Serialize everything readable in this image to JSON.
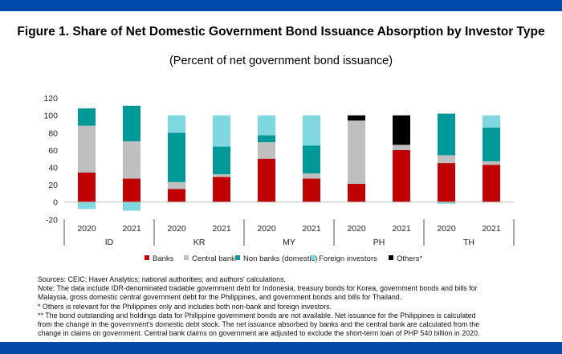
{
  "chart_data": {
    "type": "bar",
    "stacked": true,
    "title": "Figure 1. Share of Net Domestic Government Bond Issuance Absorption by Investor Type",
    "subtitle": "(Percent of net government bond issuance)",
    "ylim": [
      -20,
      120
    ],
    "yticks": [
      "-20",
      "0",
      "20",
      "40",
      "60",
      "80",
      "100",
      "120"
    ],
    "groups": [
      "ID",
      "KR",
      "MY",
      "PH",
      "TH"
    ],
    "categories": [
      "2020",
      "2021",
      "2020",
      "2021",
      "2020",
      "2021",
      "2020",
      "2021",
      "2020",
      "2021"
    ],
    "legend_position": "bottom",
    "series": [
      {
        "name": "Banks",
        "color": "#C00000",
        "values": [
          34,
          27,
          15,
          29,
          50,
          27,
          21,
          60,
          45,
          43
        ]
      },
      {
        "name": "Central bank",
        "color": "#BFBFBF",
        "values": [
          54,
          43,
          8,
          3,
          19,
          6,
          73,
          6,
          9,
          4
        ]
      },
      {
        "name": "Non banks (domestic)",
        "color": "#009999",
        "values": [
          20,
          41,
          57,
          32,
          8,
          32,
          0,
          0,
          48,
          39
        ]
      },
      {
        "name": "Foreign investors",
        "color": "#7FD8E0",
        "values": [
          -8,
          -10,
          20,
          36,
          23,
          35,
          0,
          0,
          -2,
          14
        ]
      },
      {
        "name": "Others*",
        "color": "#000000",
        "values": [
          0,
          0,
          0,
          0,
          0,
          0,
          6,
          34,
          0,
          0
        ]
      }
    ]
  },
  "notes": [
    "Sources: CEIC; Haver Analytics; national authorities; and authors' calculations.",
    "Note: The data include IDR-denominated tradable government debt for Indonesia, treasury bonds for Korea, government bonds and bills for",
    "Malaysia, gross domestic central government debt for the Philippines, and government bonds and bills for Thailand.",
    "* Others is relevant for the Philippines only and includes both non-bank and foreign investors.",
    "** The bond outstanding and holdings data for Philippine government bonds are not available. Net issuance for the Philippines is calculated",
    "from the change in the government's domestic debt stock. The net issuance absorbed by banks and the central bank are calculated from the",
    "change in claims on government. Central bank claims on government are adjusted to exclude the short-term loan of PHP 540 billion in 2020."
  ]
}
